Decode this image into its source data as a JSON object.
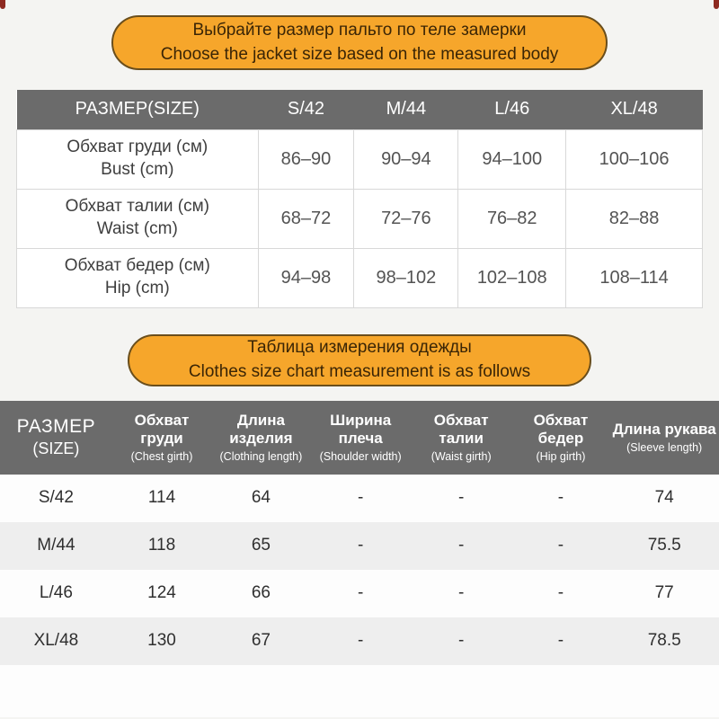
{
  "banners": {
    "top": {
      "ru": "Выбрайте размер пальто по теле замерки",
      "en": "Choose the jacket size based on the measured body"
    },
    "middle": {
      "ru": "Таблица измерения одежды",
      "en": "Clothes size chart measurement is as follows"
    }
  },
  "colors": {
    "accent_orange": "#F6A62B",
    "banner_border": "#6a4e1c",
    "banner_text": "#3a2506",
    "header_gray": "#6b6b6b",
    "row_stripe": "#eeeeee",
    "table_border": "#d8d8d8",
    "page_background": "#f4f4f2",
    "corner_mark": "#8e2a21"
  },
  "chart_data": [
    {
      "type": "table",
      "title": "Body measurements by size",
      "header": [
        "РАЗМЕР(SIZE)",
        "S/42",
        "M/44",
        "L/46",
        "XL/48"
      ],
      "rows": [
        {
          "ru": "Обхват груди (см)",
          "en": "Bust (cm)",
          "s42": "86–90",
          "m44": "90–94",
          "l46": "94–100",
          "xl48": "100–106"
        },
        {
          "ru": "Обхват талии (см)",
          "en": "Waist (cm)",
          "s42": "68–72",
          "m44": "72–76",
          "l46": "76–82",
          "xl48": "82–88"
        },
        {
          "ru": "Обхват бедер (см)",
          "en": "Hip (cm)",
          "s42": "94–98",
          "m44": "98–102",
          "l46": "102–108",
          "xl48": "108–114"
        }
      ]
    },
    {
      "type": "table",
      "title": "Clothes measurements by size",
      "columns": [
        {
          "ru": "РАЗМЕР",
          "en": "(SIZE)"
        },
        {
          "ru": "Обхват груди",
          "en": "(Chest girth)"
        },
        {
          "ru": "Длина изделия",
          "en": "(Clothing length)"
        },
        {
          "ru": "Ширина плеча",
          "en": "(Shoulder width)"
        },
        {
          "ru": "Обхват талии",
          "en": "(Waist girth)"
        },
        {
          "ru": "Обхват бедер",
          "en": "(Hip girth)"
        },
        {
          "ru": "Длина рукава",
          "en": "(Sleeve length)"
        }
      ],
      "rows": [
        {
          "size": "S/42",
          "chest": "114",
          "length": "64",
          "shoulder": "-",
          "waist": "-",
          "hip": "-",
          "sleeve": "74"
        },
        {
          "size": "M/44",
          "chest": "118",
          "length": "65",
          "shoulder": "-",
          "waist": "-",
          "hip": "-",
          "sleeve": "75.5"
        },
        {
          "size": "L/46",
          "chest": "124",
          "length": "66",
          "shoulder": "-",
          "waist": "-",
          "hip": "-",
          "sleeve": "77"
        },
        {
          "size": "XL/48",
          "chest": "130",
          "length": "67",
          "shoulder": "-",
          "waist": "-",
          "hip": "-",
          "sleeve": "78.5"
        }
      ]
    }
  ]
}
